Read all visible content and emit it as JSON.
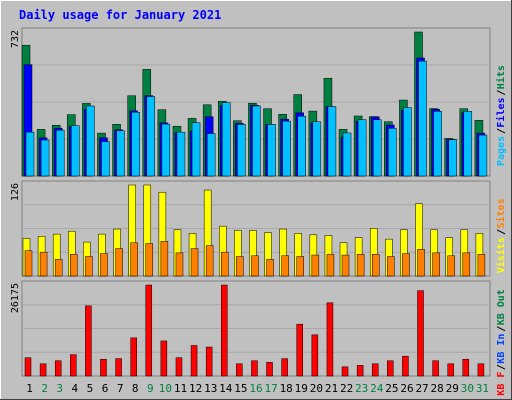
{
  "title": "Daily usage for January 2021",
  "colors": {
    "background": "#c0c0c0",
    "plot_bg": "#c0c0c0",
    "frame": "#808080",
    "grid": "#a8a8a8",
    "title": "#0000ff",
    "hits": "#008040",
    "files": "#0000ff",
    "pages": "#00c0ff",
    "visits": "#ffff00",
    "sites": "#ff8000",
    "kbin": "#0040ff",
    "kbout": "#008040",
    "kbf": "#ff0000",
    "day_weekday": "#000000",
    "day_weekend": "#008040"
  },
  "chart_data": [
    {
      "type": "bar",
      "name": "hits-files-pages",
      "y_max_label": "732",
      "ylim": [
        0,
        732
      ],
      "legend": [
        "Pages",
        "Files",
        "Hits"
      ],
      "categories": [
        "1",
        "2",
        "3",
        "4",
        "5",
        "6",
        "7",
        "8",
        "9",
        "10",
        "11",
        "12",
        "13",
        "14",
        "15",
        "16",
        "17",
        "18",
        "19",
        "20",
        "21",
        "22",
        "23",
        "24",
        "25",
        "26",
        "27",
        "28",
        "29",
        "30",
        "31"
      ],
      "series": [
        {
          "name": "Hits",
          "values": [
            665,
            237,
            258,
            312,
            369,
            218,
            263,
            408,
            542,
            337,
            253,
            293,
            362,
            380,
            281,
            370,
            342,
            314,
            414,
            330,
            497,
            237,
            305,
            302,
            276,
            386,
            732,
            343,
            191,
            342,
            283
          ]
        },
        {
          "name": "Files",
          "values": [
            566,
            194,
            243,
            253,
            340,
            194,
            235,
            331,
            409,
            270,
            220,
            227,
            301,
            358,
            268,
            360,
            263,
            289,
            321,
            270,
            353,
            198,
            279,
            301,
            259,
            335,
            600,
            339,
            187,
            321,
            218
          ]
        },
        {
          "name": "Pages",
          "values": [
            223,
            183,
            233,
            256,
            356,
            175,
            230,
            324,
            404,
            264,
            223,
            271,
            216,
            373,
            262,
            356,
            262,
            279,
            304,
            276,
            353,
            219,
            286,
            286,
            242,
            348,
            584,
            329,
            185,
            329,
            208
          ]
        }
      ]
    },
    {
      "type": "bar",
      "name": "visits-sites",
      "y_max_label": "126",
      "ylim": [
        0,
        126
      ],
      "legend": [
        "Visits",
        "Sites"
      ],
      "categories": [
        "1",
        "2",
        "3",
        "4",
        "5",
        "6",
        "7",
        "8",
        "9",
        "10",
        "11",
        "12",
        "13",
        "14",
        "15",
        "16",
        "17",
        "18",
        "19",
        "20",
        "21",
        "22",
        "23",
        "24",
        "25",
        "26",
        "27",
        "28",
        "29",
        "30",
        "31"
      ],
      "series": [
        {
          "name": "Visits",
          "values": [
            52,
            55,
            58,
            62,
            47,
            58,
            65,
            126,
            126,
            116,
            64,
            59,
            119,
            69,
            63,
            63,
            60,
            65,
            59,
            57,
            56,
            46,
            53,
            66,
            51,
            64,
            100,
            64,
            53,
            64,
            59
          ]
        },
        {
          "name": "Sites",
          "values": [
            35,
            33,
            23,
            30,
            27,
            31,
            38,
            46,
            45,
            48,
            32,
            38,
            42,
            33,
            27,
            28,
            23,
            28,
            27,
            29,
            30,
            29,
            30,
            30,
            27,
            31,
            37,
            32,
            28,
            32,
            30
          ]
        }
      ]
    },
    {
      "type": "bar",
      "name": "kbytes",
      "y_max_label": "26175",
      "ylim": [
        0,
        26175
      ],
      "legend": [
        "KB F",
        "KB In",
        "KB Out"
      ],
      "categories": [
        "1",
        "2",
        "3",
        "4",
        "5",
        "6",
        "7",
        "8",
        "9",
        "10",
        "11",
        "12",
        "13",
        "14",
        "15",
        "16",
        "17",
        "18",
        "19",
        "20",
        "21",
        "22",
        "23",
        "24",
        "25",
        "26",
        "27",
        "28",
        "29",
        "30",
        "31"
      ],
      "series": [
        {
          "name": "KB F",
          "values": [
            5264,
            3509,
            4386,
            6140,
            20175,
            4825,
            5000,
            10965,
            26175,
            10087,
            5263,
            8772,
            8333,
            26175,
            3509,
            4386,
            3947,
            5000,
            14912,
            11842,
            21053,
            2632,
            3070,
            3509,
            4386,
            5702,
            24561,
            4386,
            3509,
            4825,
            3509
          ]
        }
      ]
    }
  ]
}
